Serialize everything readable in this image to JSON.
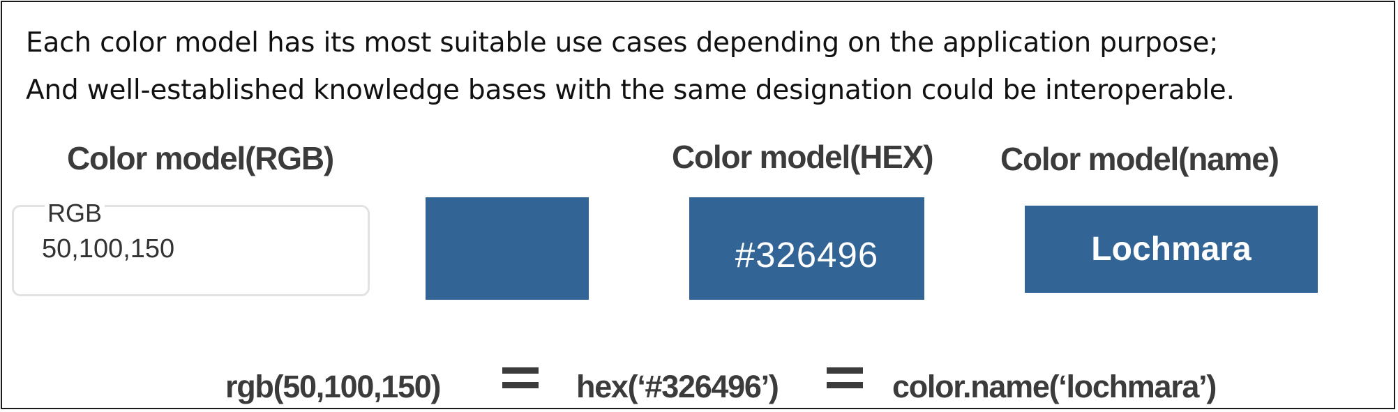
{
  "intro": {
    "line1": "Each color model has its most suitable use cases depending on the application purpose;",
    "line2": "And well-established knowledge bases with the same designation could be interoperable."
  },
  "headings": {
    "rgb": "Color model(RGB)",
    "hex": "Color model(HEX)",
    "name": "Color model(name)"
  },
  "rgb_field": {
    "legend": "RGB",
    "value": "50,100,150"
  },
  "hex_box": {
    "text": "#326496"
  },
  "name_box": {
    "text": "Lochmara"
  },
  "equation": {
    "rgb": "rgb(50,100,150)",
    "hex": "hex(‘#326496’)",
    "name": "color.name(‘lochmara’)"
  },
  "colors": {
    "swatch": "#326496",
    "border": "#1a1a1a",
    "heading_text": "#3b3b3b",
    "field_border": "#e2e2e2"
  }
}
